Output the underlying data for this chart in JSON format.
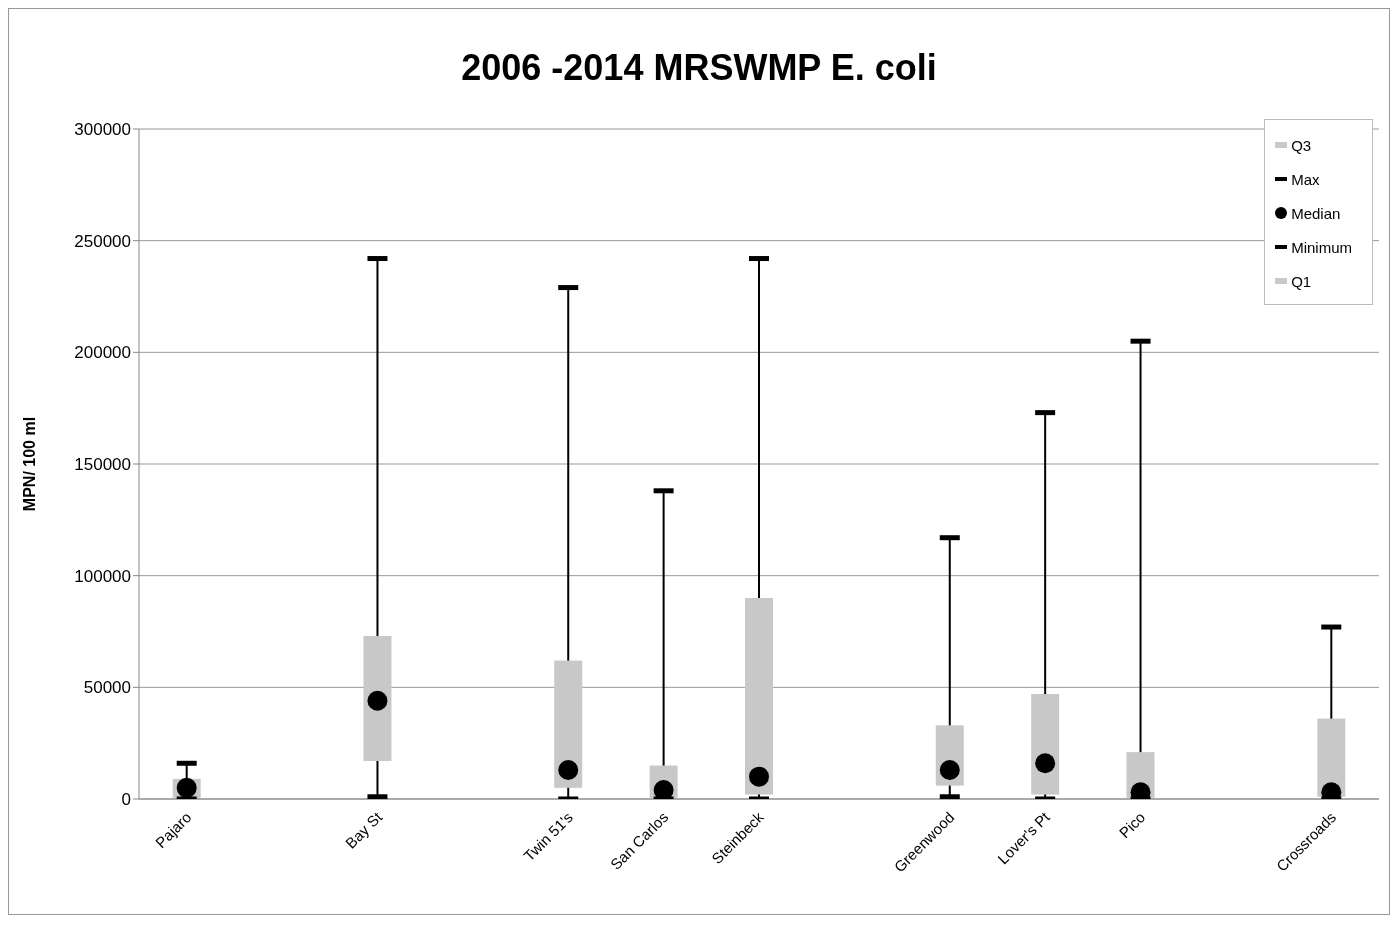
{
  "chart_data": {
    "type": "box",
    "title": "2006 -2014 MRSWMP E. coli",
    "ylabel": "MPN/ 100 ml",
    "categories": [
      "Pajaro",
      null,
      "Bay St",
      null,
      "Twin 51's",
      "San Carlos",
      "Steinbeck",
      null,
      "Greenwood",
      "Lover's Pt",
      "Pico",
      null,
      "Crossroads"
    ],
    "boxes": [
      {
        "low": 0,
        "q1": 500,
        "median": 5000,
        "q3": 9000,
        "high": 16000
      },
      null,
      {
        "low": 1000,
        "q1": 17000,
        "median": 44000,
        "q3": 73000,
        "high": 242000
      },
      null,
      {
        "low": 0,
        "q1": 5000,
        "median": 13000,
        "q3": 62000,
        "high": 229000
      },
      {
        "low": 0,
        "q1": 500,
        "median": 4000,
        "q3": 15000,
        "high": 138000
      },
      {
        "low": 0,
        "q1": 2000,
        "median": 10000,
        "q3": 90000,
        "high": 242000
      },
      null,
      {
        "low": 1000,
        "q1": 6000,
        "median": 13000,
        "q3": 33000,
        "high": 117000
      },
      {
        "low": 0,
        "q1": 2000,
        "median": 16000,
        "q3": 47000,
        "high": 173000
      },
      {
        "low": 0,
        "q1": 500,
        "median": 3000,
        "q3": 21000,
        "high": 205000
      },
      null,
      {
        "low": 0,
        "q1": 1000,
        "median": 3000,
        "q3": 36000,
        "high": 77000
      }
    ],
    "color": "#c8c8c8",
    "annotations": [
      "Q3",
      "Max",
      "Median",
      "Minimum",
      "Q1"
    ],
    "ylim": [
      0,
      300000
    ],
    "yticks": [
      0,
      50000,
      100000,
      150000,
      200000,
      250000,
      300000
    ],
    "grid": "y"
  }
}
